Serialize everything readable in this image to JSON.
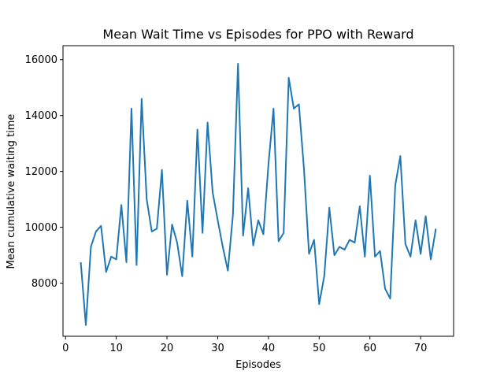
{
  "chart_data": {
    "type": "line",
    "title": "Mean Wait Time vs Episodes for PPO with Reward",
    "xlabel": "Episodes",
    "ylabel": "Mean cumulative waiting time",
    "xlim": [
      -0.5,
      76.5
    ],
    "ylim": [
      6100,
      16500
    ],
    "xticks": [
      0,
      10,
      20,
      30,
      40,
      50,
      60,
      70
    ],
    "yticks": [
      8000,
      10000,
      12000,
      14000,
      16000
    ],
    "grid": false,
    "line_color": "#1f77b4",
    "series": [
      {
        "x": [
          3,
          4,
          5,
          6,
          7,
          8,
          9,
          10,
          11,
          12,
          13,
          14,
          15,
          16,
          17,
          18,
          19,
          20,
          21,
          22,
          23,
          24,
          25,
          26,
          27,
          28,
          29,
          30,
          31,
          32,
          33,
          34,
          35,
          36,
          37,
          38,
          39,
          40,
          41,
          42,
          43,
          44,
          45,
          46,
          47,
          48,
          49,
          50,
          51,
          52,
          53,
          54,
          55,
          56,
          57,
          58,
          59,
          60,
          61,
          62,
          63,
          64,
          65,
          66,
          67,
          68,
          69,
          70,
          71,
          72,
          73
        ],
        "values": [
          8750,
          6500,
          9300,
          9850,
          10050,
          8400,
          8950,
          8850,
          10800,
          8750,
          14250,
          8650,
          14600,
          11000,
          9850,
          9950,
          12050,
          8300,
          10100,
          9450,
          8250,
          10950,
          8950,
          13500,
          9800,
          13750,
          11250,
          10250,
          9300,
          8450,
          10450,
          15850,
          9700,
          11400,
          9350,
          10250,
          9750,
          12250,
          14250,
          9500,
          9800,
          15350,
          14250,
          14400,
          12100,
          9050,
          9550,
          7250,
          8250,
          10700,
          9000,
          9300,
          9200,
          9550,
          9450,
          10750,
          8950,
          11850,
          8950,
          9150,
          7800,
          7450,
          11500,
          12550,
          9400,
          8950,
          10250,
          9050,
          10400,
          8850,
          9950
        ]
      }
    ]
  }
}
